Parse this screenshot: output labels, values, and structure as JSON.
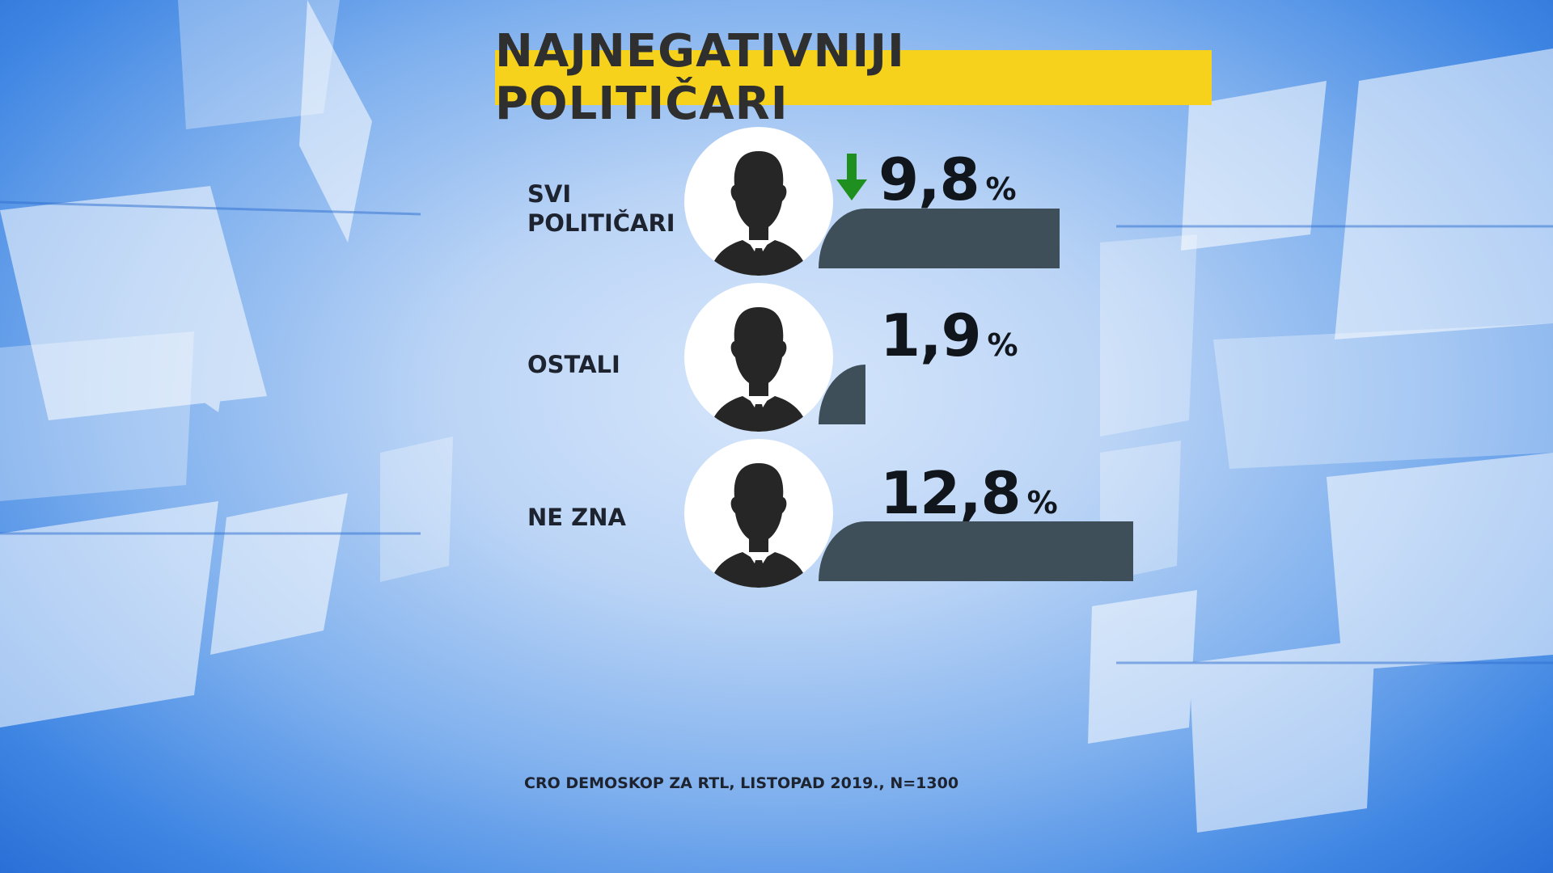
{
  "title": "NAJNEGATIVNIJI POLITIČARI",
  "source": "CRO DEMOSKOP ZA RTL, LISTOPAD 2019., N=1300",
  "colors": {
    "title_bg": "#f6d21d",
    "bar": "#3e4f59",
    "trend_down": "#1f8f1f"
  },
  "icons": {
    "avatar": "person-silhouette-icon",
    "trend": "arrow-down-icon"
  },
  "chart_data": {
    "type": "bar",
    "orientation": "horizontal",
    "unit": "%",
    "categories": [
      "SVI POLITIČARI",
      "OSTALI",
      "NE ZNA"
    ],
    "values": [
      9.8,
      1.9,
      12.8
    ],
    "value_labels": [
      "9,8",
      "1,9",
      "12,8"
    ],
    "trend": [
      "down",
      null,
      null
    ]
  }
}
